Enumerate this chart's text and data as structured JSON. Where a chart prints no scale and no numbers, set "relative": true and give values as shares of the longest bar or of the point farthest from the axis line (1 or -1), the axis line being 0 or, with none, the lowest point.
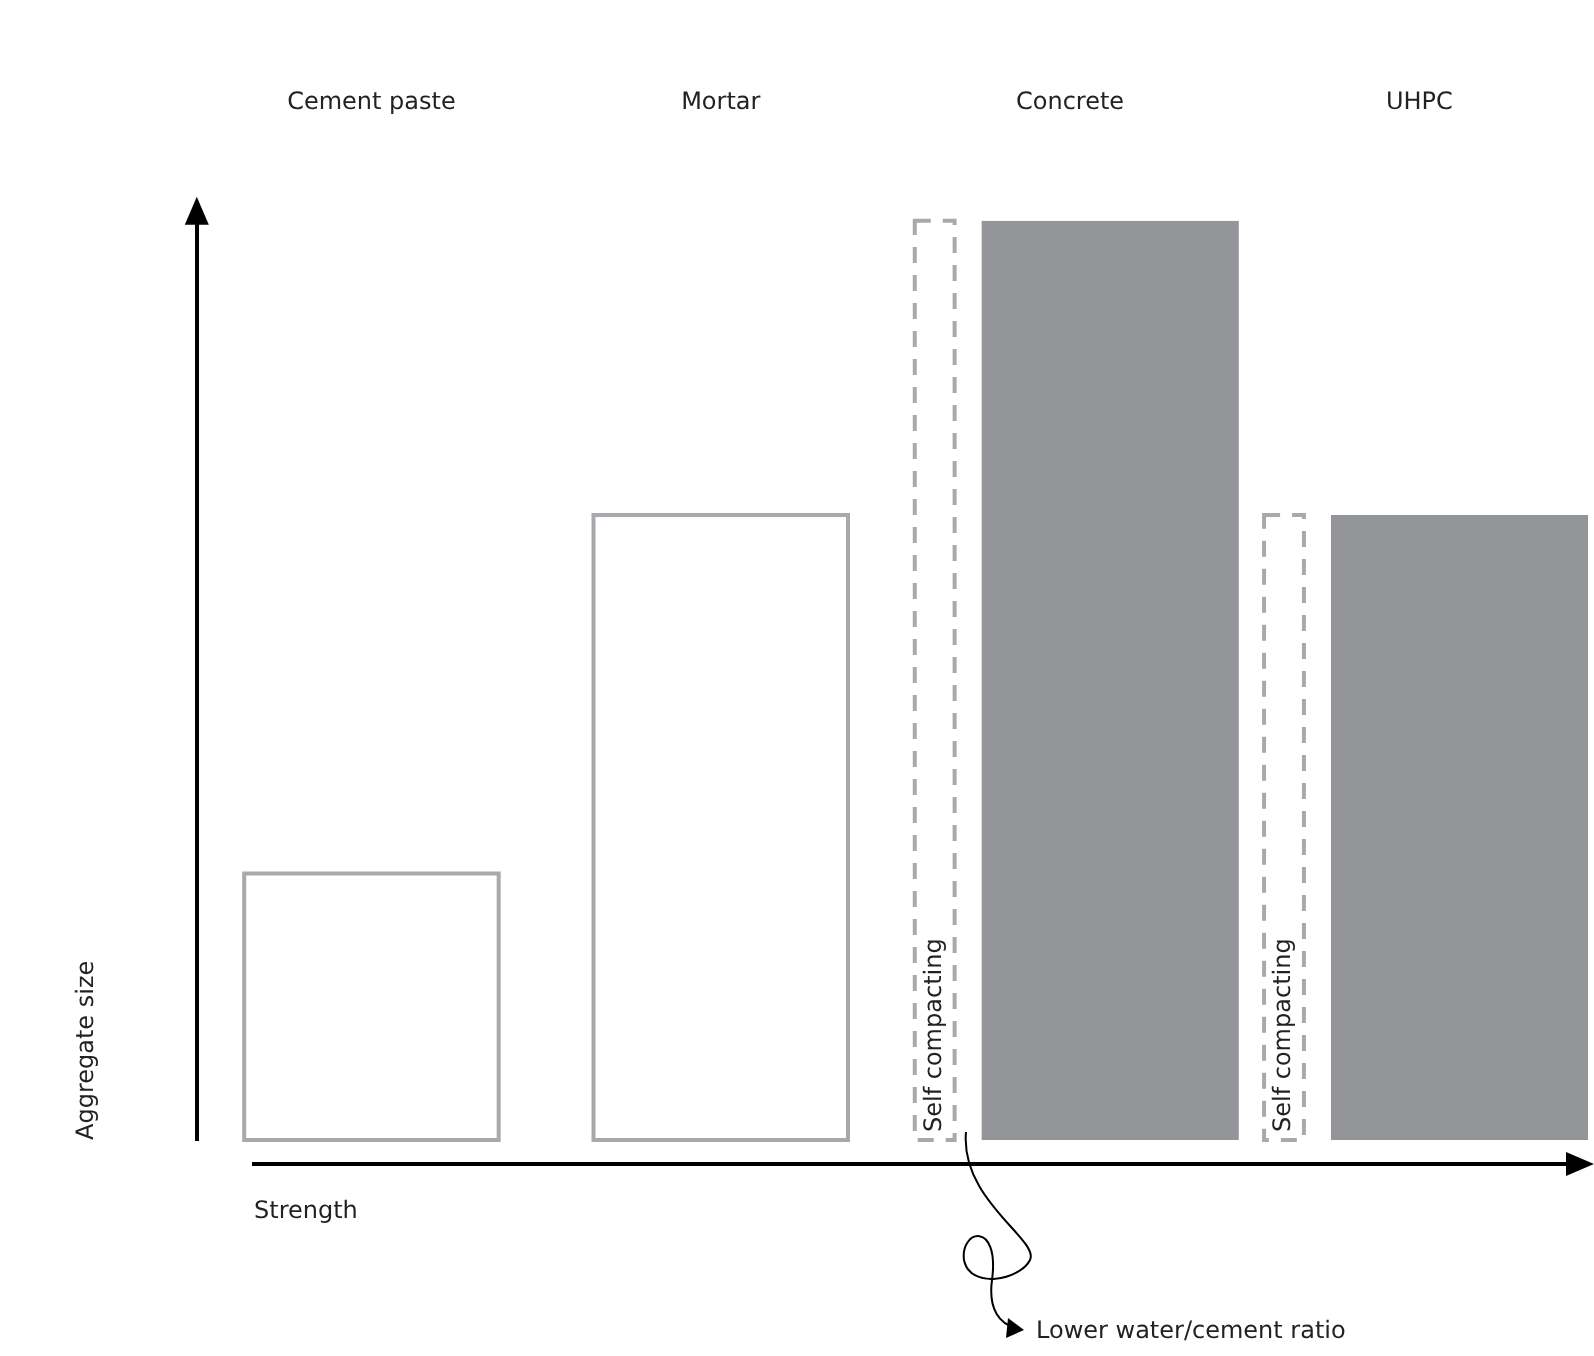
{
  "chart_data": {
    "type": "bar",
    "relative": true,
    "categories": [
      "Cement paste",
      "Mortar",
      "Concrete",
      "UHPC"
    ],
    "xlabel": "Strength",
    "ylabel": "Aggregate size",
    "series": [
      {
        "color": "#a7a9ac",
        "line_style": "solid",
        "values": [
          0.29,
          0.68,
          null,
          null
        ]
      },
      {
        "name": "Self compacting",
        "color": "#a7a9ac",
        "line_style": "dashed",
        "values": [
          null,
          null,
          1,
          0.68
        ]
      },
      {
        "color": "#939598",
        "values": [
          null,
          null,
          1,
          0.68
        ]
      }
    ],
    "annotations": [
      "Lower water/cement ratio"
    ]
  }
}
